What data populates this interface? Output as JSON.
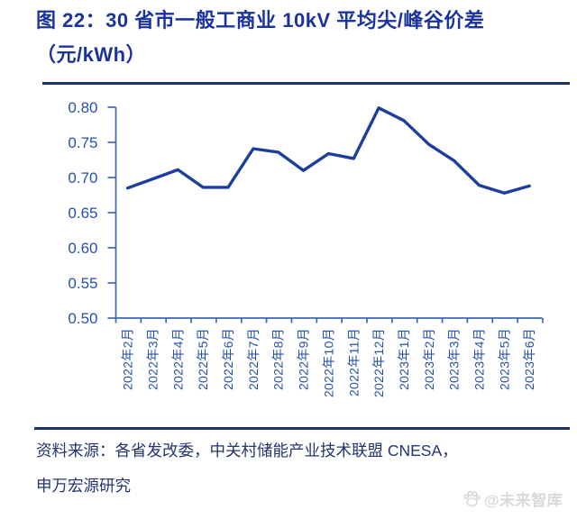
{
  "title": {
    "line1": "图 22：30 省市一般工商业 10kV 平均尖/峰谷价差",
    "line2": "（元/kWh）"
  },
  "chart_data": {
    "type": "line",
    "title": "30 省市一般工商业 10kV 平均尖/峰谷价差（元/kWh）",
    "categories": [
      "2022年2月",
      "2022年3月",
      "2022年4月",
      "2022年5月",
      "2022年6月",
      "2022年7月",
      "2022年8月",
      "2022年9月",
      "2022年10月",
      "2022年11月",
      "2022年12月",
      "2023年1月",
      "2023年2月",
      "2023年3月",
      "2023年4月",
      "2023年5月",
      "2023年6月"
    ],
    "values": [
      0.685,
      0.698,
      0.711,
      0.686,
      0.686,
      0.741,
      0.736,
      0.71,
      0.734,
      0.727,
      0.799,
      0.781,
      0.747,
      0.724,
      0.689,
      0.678,
      0.688
    ],
    "xlabel": "",
    "ylabel": "",
    "ylim": [
      0.5,
      0.8
    ],
    "yticks": [
      0.8,
      0.75,
      0.7,
      0.65,
      0.6,
      0.55,
      0.5
    ],
    "grid": false,
    "legend": "none",
    "line_color": "#1d3e9b",
    "axis_color": "#3d68ba",
    "tick_label_color": "#2551a8"
  },
  "footer": {
    "line1": "资料来源：各省发改委，中关村储能产业技术联盟 CNESA，",
    "line2": "申万宏源研究"
  },
  "watermark": {
    "text": "@未来智库"
  },
  "colors": {
    "title_text": "#1b339c",
    "divider": "#1b3566",
    "footer_text": "#233470",
    "watermark": "#d9d9d9"
  }
}
